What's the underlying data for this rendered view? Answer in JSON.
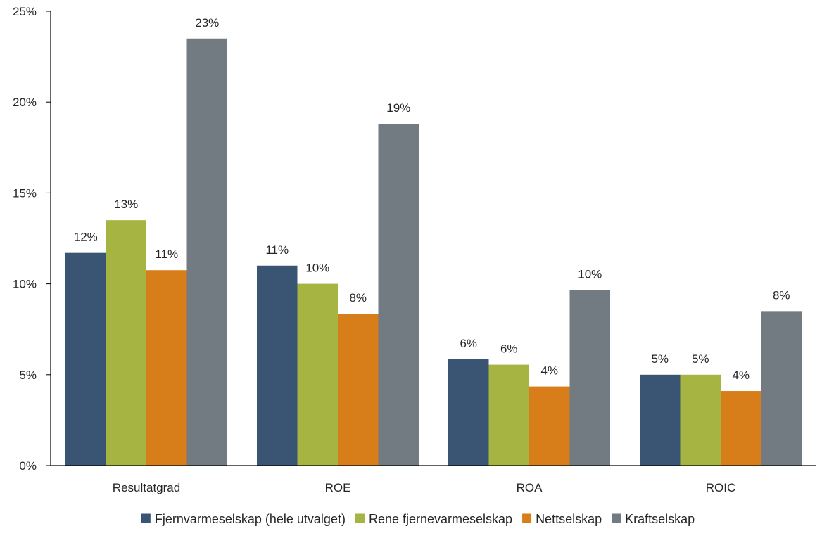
{
  "chart_data": {
    "type": "bar",
    "categories": [
      "Resultatgrad",
      "ROE",
      "ROA",
      "ROIC"
    ],
    "series": [
      {
        "name": "Fjernvarmeselskap (hele utvalget)",
        "color": "#3a5573",
        "values": [
          11.7,
          11.0,
          5.85,
          5.0
        ],
        "labels": [
          "12%",
          "11%",
          "6%",
          "5%"
        ]
      },
      {
        "name": "Rene fjernevarmeselskap",
        "color": "#a6b542",
        "values": [
          13.5,
          10.0,
          5.55,
          5.0
        ],
        "labels": [
          "13%",
          "10%",
          "6%",
          "5%"
        ]
      },
      {
        "name": "Nettselskap",
        "color": "#d77d1a",
        "values": [
          10.75,
          8.35,
          4.35,
          4.1
        ],
        "labels": [
          "11%",
          "8%",
          "4%",
          "4%"
        ]
      },
      {
        "name": "Kraftselskap",
        "color": "#737b82",
        "values": [
          23.5,
          18.8,
          9.65,
          8.5
        ],
        "labels": [
          "23%",
          "19%",
          "10%",
          "8%"
        ]
      }
    ],
    "ylim": [
      0,
      25
    ],
    "yticks": [
      0,
      5,
      10,
      15,
      20,
      25
    ],
    "ytick_labels": [
      "0%",
      "5%",
      "10%",
      "15%",
      "20%",
      "25%"
    ],
    "grid": false,
    "legend_position": "bottom"
  }
}
